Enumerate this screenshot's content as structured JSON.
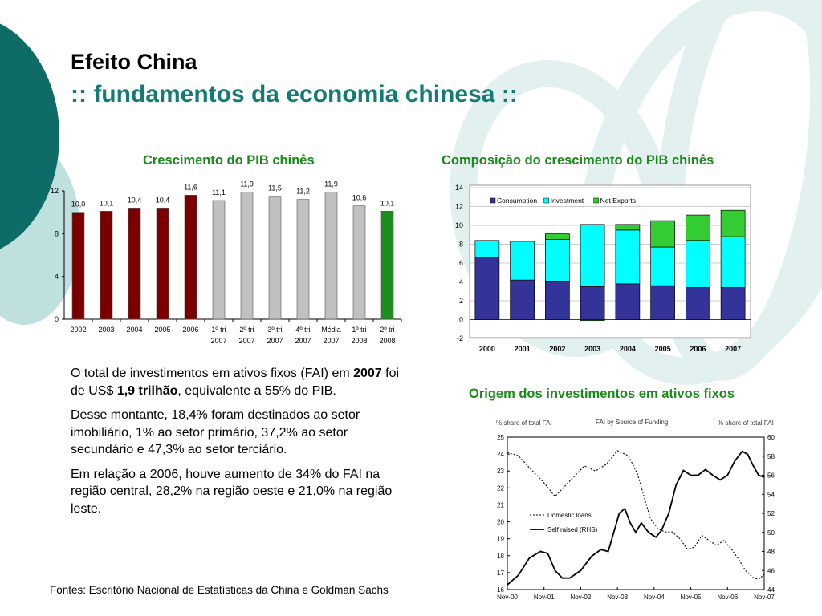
{
  "slide": {
    "title": "Efeito China",
    "subtitle": ":: fundamentos da economia chinesa ::"
  },
  "charts_headings": {
    "pib": "Crescimento do PIB chinês",
    "composition": "Composição do crescimento do PIB chinês",
    "fai": "Origem dos investimentos em ativos fixos"
  },
  "body": {
    "p1_a": "O total de investimentos em ativos fixos (FAI) em ",
    "p1_b": "2007",
    "p1_c": " foi de US$ ",
    "p1_d": "1,9 trilhão",
    "p1_e": ", equivalente a 55% do PIB.",
    "p2": "Desse montante, 18,4% foram destinados ao setor imobiliário, 1% ao setor primário, 37,2% ao setor secundário e 47,3% ao setor terciário.",
    "p3": "Em relação a 2006, houve aumento de 34% do FAI na região central, 28,2% na região oeste e 21,0% na região leste."
  },
  "footer": {
    "sources": "Fontes: Escritório Nacional de Estatísticas da China e Goldman Sachs"
  },
  "colors": {
    "teal_dark": "#0f6b66",
    "teal_light": "#bfe0de",
    "green_heading": "#1a8a1a",
    "bar_dark_red": "#7a0000",
    "bar_gray": "#c0c0c0",
    "bar_green": "#1e8c1e",
    "consumption": "#333399",
    "investment": "#00ffff",
    "net_exports": "#33cc33"
  },
  "chart_data": [
    {
      "type": "bar",
      "categories": [
        "2002",
        "2003",
        "2004",
        "2005",
        "2006",
        "1º tri 2007",
        "2º tri 2007",
        "3º tri 2007",
        "4º tri 2007",
        "Média 2007",
        "1º tri 2008",
        "2º tri 2008"
      ],
      "category_lines": [
        [
          "2002",
          ""
        ],
        [
          "2003",
          ""
        ],
        [
          "2004",
          ""
        ],
        [
          "2005",
          ""
        ],
        [
          "2006",
          ""
        ],
        [
          "1º tri",
          "2007"
        ],
        [
          "2º tri",
          "2007"
        ],
        [
          "3º tri",
          "2007"
        ],
        [
          "4º tri",
          "2007"
        ],
        [
          "Média",
          "2007"
        ],
        [
          "1º tri",
          "2008"
        ],
        [
          "2º tri",
          "2008"
        ]
      ],
      "values": [
        10.0,
        10.1,
        10.4,
        10.4,
        11.6,
        11.1,
        11.9,
        11.5,
        11.2,
        11.9,
        10.6,
        10.1
      ],
      "value_labels": [
        "10,0",
        "10,1",
        "10,4",
        "10,4",
        "11,6",
        "11,1",
        "11,9",
        "11,5",
        "11,2",
        "11,9",
        "10,6",
        "10,1"
      ],
      "bar_colors": [
        "#7a0000",
        "#7a0000",
        "#7a0000",
        "#7a0000",
        "#7a0000",
        "#c0c0c0",
        "#c0c0c0",
        "#c0c0c0",
        "#c0c0c0",
        "#c0c0c0",
        "#c0c0c0",
        "#1e8c1e"
      ],
      "ylim": [
        0,
        12
      ],
      "yticks": [
        0,
        4,
        8,
        12
      ],
      "title": "Crescimento do PIB chinês"
    },
    {
      "type": "bar",
      "stacked": true,
      "categories": [
        "2000",
        "2001",
        "2002",
        "2003",
        "2004",
        "2005",
        "2006",
        "2007"
      ],
      "series": [
        {
          "name": "Consumption",
          "color": "#333399",
          "values": [
            6.6,
            4.2,
            4.1,
            3.5,
            3.8,
            3.6,
            3.4,
            3.4
          ]
        },
        {
          "name": "Investment",
          "color": "#00ffff",
          "values": [
            1.8,
            4.1,
            4.4,
            6.6,
            5.7,
            4.1,
            5.0,
            5.4
          ]
        },
        {
          "name": "Net Exports",
          "color": "#33cc33",
          "values": [
            0.0,
            0.0,
            0.6,
            -0.1,
            0.6,
            2.8,
            2.7,
            2.8
          ]
        }
      ],
      "ylim": [
        -2,
        14
      ],
      "yticks": [
        -2,
        0,
        2,
        4,
        6,
        8,
        10,
        12,
        14
      ],
      "legend": "top-left",
      "title": "Composição do crescimento do PIB chinês"
    },
    {
      "type": "line",
      "title": "FAI by Source of Funding",
      "ylabel": "% share of total FAI",
      "y2label": "% share of total FAI",
      "x_ticks": [
        "Nov-00",
        "Nov-01",
        "Nov-02",
        "Nov-03",
        "Nov-04",
        "Nov-05",
        "Nov-06",
        "Nov-07"
      ],
      "xlim": [
        0,
        7
      ],
      "ylim": [
        16,
        25
      ],
      "yticks": [
        16,
        17,
        18,
        19,
        20,
        21,
        22,
        23,
        24,
        25
      ],
      "y2lim": [
        44,
        60
      ],
      "y2ticks": [
        44,
        46,
        48,
        50,
        52,
        54,
        56,
        58,
        60
      ],
      "legend": "middle-left",
      "series": [
        {
          "name": "Domestic loans",
          "axis": "left",
          "style": "dotted",
          "x": [
            0,
            0.3,
            0.6,
            1.0,
            1.3,
            1.7,
            2.1,
            2.4,
            2.7,
            3.0,
            3.3,
            3.55,
            3.75,
            3.9,
            4.1,
            4.3,
            4.5,
            4.7,
            4.9,
            5.1,
            5.3,
            5.5,
            5.7,
            5.9,
            6.1,
            6.3,
            6.5,
            6.7,
            6.85,
            7.0
          ],
          "y": [
            24.1,
            23.9,
            23.2,
            22.3,
            21.5,
            22.4,
            23.3,
            23.0,
            23.4,
            24.2,
            23.9,
            22.8,
            21.3,
            20.2,
            19.6,
            19.4,
            19.4,
            19.0,
            18.4,
            18.5,
            19.2,
            18.9,
            18.6,
            18.9,
            18.4,
            17.8,
            17.1,
            16.7,
            16.6,
            16.9
          ]
        },
        {
          "name": "Self raised (RHS)",
          "axis": "right",
          "style": "solid",
          "x": [
            0,
            0.3,
            0.6,
            0.9,
            1.1,
            1.3,
            1.5,
            1.7,
            2.0,
            2.3,
            2.55,
            2.75,
            2.9,
            3.05,
            3.2,
            3.35,
            3.5,
            3.65,
            3.85,
            4.05,
            4.2,
            4.4,
            4.6,
            4.8,
            5.0,
            5.2,
            5.4,
            5.6,
            5.8,
            6.0,
            6.2,
            6.4,
            6.55,
            6.7,
            6.85,
            7.0
          ],
          "y": [
            44.5,
            45.5,
            47.3,
            48.0,
            47.8,
            46.0,
            45.2,
            45.2,
            46.0,
            47.5,
            48.2,
            48.0,
            50.0,
            52.0,
            52.5,
            51.0,
            50.0,
            51.0,
            50.0,
            49.5,
            50.2,
            52.0,
            55.0,
            56.5,
            56.0,
            56.0,
            56.6,
            56.0,
            55.5,
            56.0,
            57.5,
            58.5,
            58.2,
            57.0,
            56.0,
            55.8
          ]
        }
      ]
    }
  ]
}
